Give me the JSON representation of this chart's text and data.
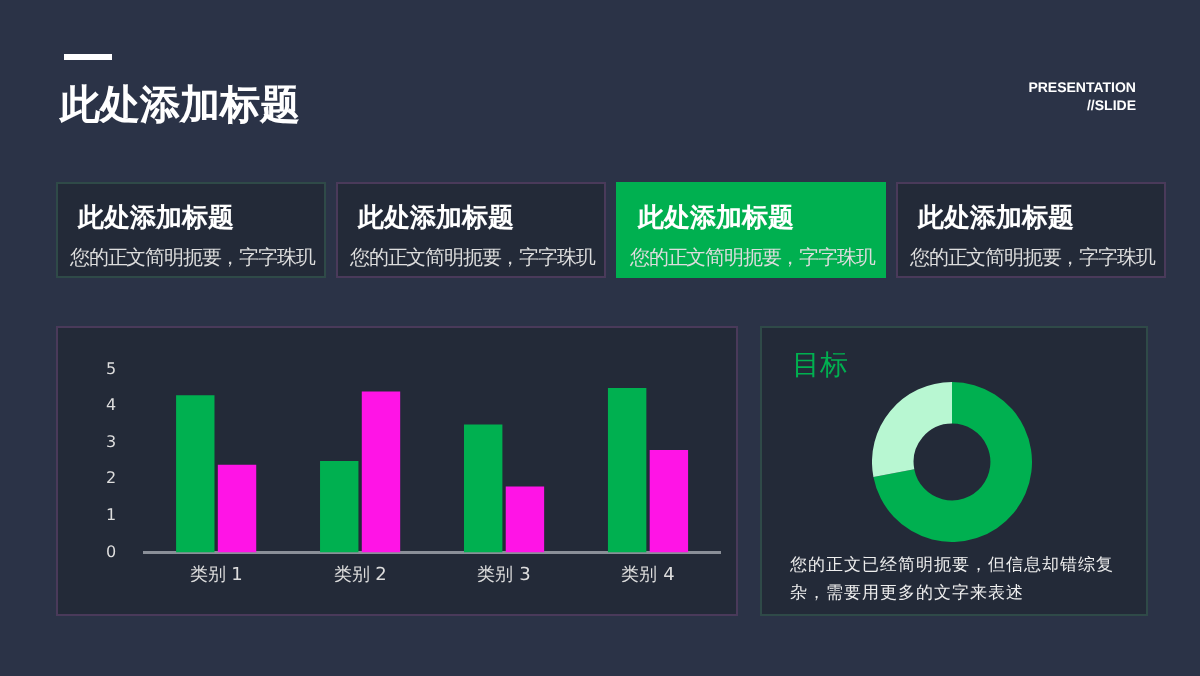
{
  "chart_data": [
    {
      "type": "other",
      "title": "此处添加标题",
      "categories": [
        "此处添加标题",
        "此处添加标题",
        "此处添加标题",
        "此处添加标题"
      ],
      "annotations": [
        "PRESENTATION //SLIDE",
        "您的正文简明扼要，字字珠玑",
        "您的正文简明扼要，字字珠玑",
        "您的正文简明扼要，字字珠玑",
        "您的正文简明扼要，字字珠玑"
      ],
      "colors": [
        "#232a38",
        "#232a38",
        "#00b050",
        "#232a38"
      ]
    },
    {
      "type": "bar",
      "categories": [
        "类别 1",
        "类别 2",
        "类别 3",
        "类别 4"
      ],
      "series": [
        {
          "color": "#00b050",
          "values": [
            4.3,
            2.5,
            3.5,
            4.5
          ]
        },
        {
          "color": "#ff14e6",
          "values": [
            2.4,
            4.4,
            1.8,
            2.8
          ]
        }
      ],
      "ylim": [
        0,
        5
      ],
      "yticks": [
        0,
        1,
        2,
        3,
        4,
        5
      ],
      "grid": false,
      "legend": false
    },
    {
      "type": "donut",
      "title": "目标",
      "categories": [
        null,
        null
      ],
      "values": [
        72,
        28
      ],
      "colors": [
        "#00b050",
        "#b8f7d2"
      ],
      "annotations": [
        "您的正文已经简明扼要，但信息却错综复杂，需要用更多的文字来表述"
      ]
    }
  ]
}
